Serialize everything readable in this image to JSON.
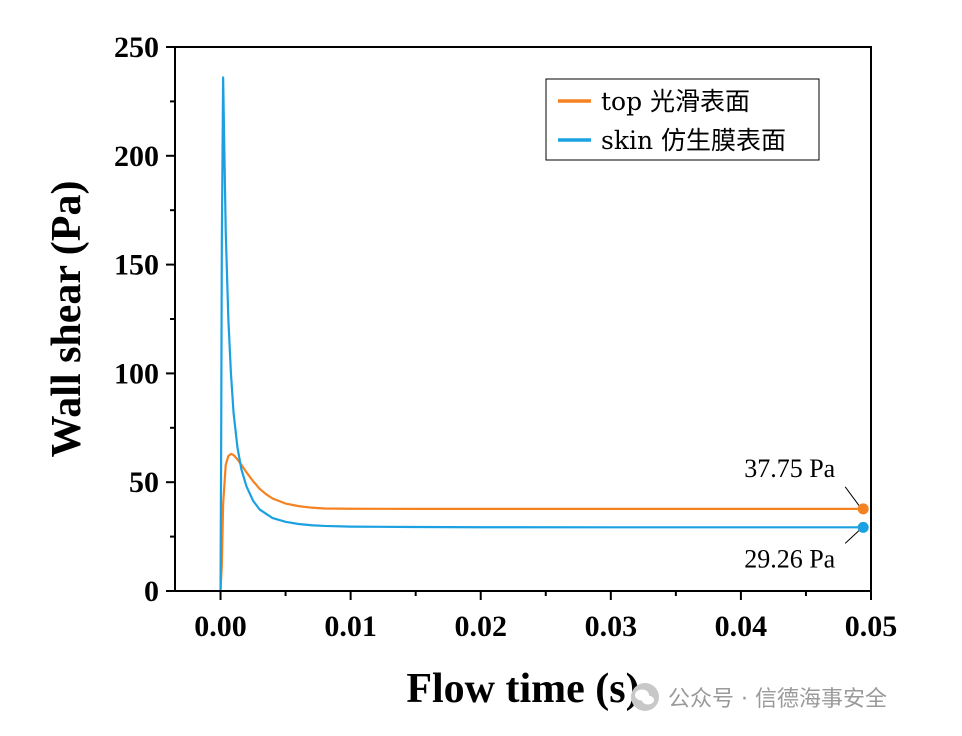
{
  "chart_data": {
    "type": "line",
    "xlabel": "Flow time (s)",
    "ylabel": "Wall shear (Pa)",
    "xlim": [
      -0.0035,
      0.05
    ],
    "ylim": [
      0,
      250
    ],
    "x_ticks": [
      "0.00",
      "0.01",
      "0.02",
      "0.03",
      "0.04",
      "0.05"
    ],
    "y_ticks": [
      "0",
      "50",
      "100",
      "150",
      "200",
      "250"
    ],
    "legend_position": "top-right",
    "series": [
      {
        "name": "top 光滑表面",
        "color": "#F58220",
        "points": [
          [
            0.0,
            0
          ],
          [
            0.0001,
            12
          ],
          [
            0.0002,
            40
          ],
          [
            0.0004,
            58
          ],
          [
            0.0006,
            62
          ],
          [
            0.0008,
            63
          ],
          [
            0.001,
            62.5
          ],
          [
            0.0013,
            60.5
          ],
          [
            0.0016,
            58
          ],
          [
            0.002,
            54.5
          ],
          [
            0.0025,
            50.5
          ],
          [
            0.003,
            47
          ],
          [
            0.0035,
            44.5
          ],
          [
            0.004,
            42.5
          ],
          [
            0.005,
            40.2
          ],
          [
            0.006,
            39
          ],
          [
            0.007,
            38.3
          ],
          [
            0.008,
            37.9
          ],
          [
            0.01,
            37.8
          ],
          [
            0.015,
            37.75
          ],
          [
            0.02,
            37.75
          ],
          [
            0.03,
            37.75
          ],
          [
            0.04,
            37.75
          ],
          [
            0.0494,
            37.75
          ]
        ]
      },
      {
        "name": "skin 仿生膜表面",
        "color": "#1BA1E2",
        "points": [
          [
            0.0,
            0
          ],
          [
            5e-05,
            70
          ],
          [
            0.0001,
            160
          ],
          [
            0.0002,
            236
          ],
          [
            0.0003,
            200
          ],
          [
            0.0004,
            165
          ],
          [
            0.0006,
            125
          ],
          [
            0.0008,
            100
          ],
          [
            0.001,
            82
          ],
          [
            0.0013,
            66
          ],
          [
            0.0016,
            56
          ],
          [
            0.002,
            48
          ],
          [
            0.0025,
            41.5
          ],
          [
            0.003,
            37.5
          ],
          [
            0.004,
            33.5
          ],
          [
            0.005,
            31.8
          ],
          [
            0.006,
            30.8
          ],
          [
            0.007,
            30.2
          ],
          [
            0.008,
            29.9
          ],
          [
            0.01,
            29.6
          ],
          [
            0.015,
            29.4
          ],
          [
            0.02,
            29.3
          ],
          [
            0.03,
            29.28
          ],
          [
            0.04,
            29.26
          ],
          [
            0.0494,
            29.26
          ]
        ]
      }
    ],
    "annotations": [
      {
        "text": "37.75 Pa",
        "x": 0.0494,
        "y": 37.75,
        "series": 0
      },
      {
        "text": "29.26 Pa",
        "x": 0.0494,
        "y": 29.26,
        "series": 1
      }
    ]
  },
  "watermark": {
    "text": "公众号 · 信德海事安全"
  }
}
